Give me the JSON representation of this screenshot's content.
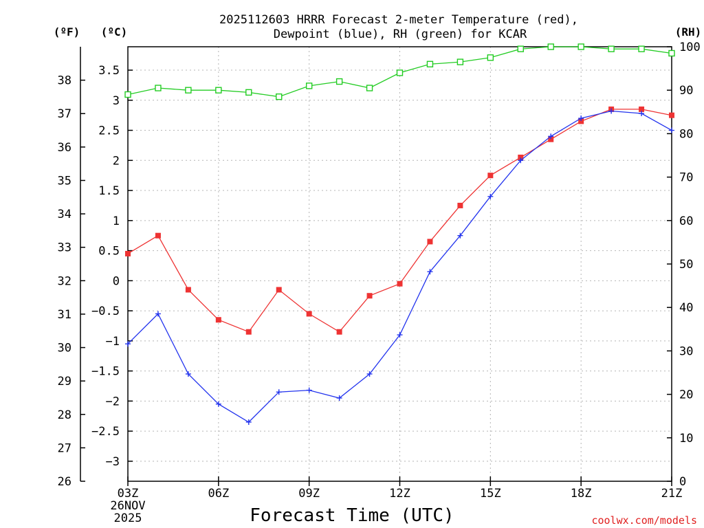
{
  "chart_data": {
    "type": "line",
    "title_lines": [
      "2025112603 HRRR Forecast 2-meter Temperature (red),",
      "Dewpoint (blue), RH (green) for KCAR"
    ],
    "xlabel": "Forecast Time (UTC)",
    "x_hours": [
      3,
      4,
      5,
      6,
      7,
      8,
      9,
      10,
      11,
      12,
      13,
      14,
      15,
      16,
      17,
      18,
      19,
      20,
      21
    ],
    "x_ticks": [
      {
        "hour": 3,
        "label": "03Z"
      },
      {
        "hour": 6,
        "label": "06Z"
      },
      {
        "hour": 9,
        "label": "09Z"
      },
      {
        "hour": 12,
        "label": "12Z"
      },
      {
        "hour": 15,
        "label": "15Z"
      },
      {
        "hour": 18,
        "label": "18Z"
      },
      {
        "hour": 21,
        "label": "21Z"
      }
    ],
    "date_label_lines": [
      "26NOV",
      "2025"
    ],
    "axes": {
      "fahrenheit": {
        "unit_label": "(ºF)",
        "range": [
          26,
          39
        ],
        "ticks": [
          26,
          27,
          28,
          29,
          30,
          31,
          32,
          33,
          34,
          35,
          36,
          37,
          38
        ]
      },
      "celsius": {
        "unit_label": "(ºC)",
        "range": [
          -3.333,
          3.889
        ],
        "ticks": [
          -3,
          -2.5,
          -2,
          -1.5,
          -1,
          -0.5,
          0,
          0.5,
          1,
          1.5,
          2,
          2.5,
          3,
          3.5
        ],
        "tick_labels": [
          "−3",
          "−2.5",
          "−2",
          "−1.5",
          "−1",
          "−0.5",
          "0",
          "0.5",
          "1",
          "1.5",
          "2",
          "2.5",
          "3",
          "3.5"
        ]
      },
      "rh": {
        "unit_label": "(RH)",
        "range": [
          0,
          100
        ],
        "ticks": [
          0,
          10,
          20,
          30,
          40,
          50,
          60,
          70,
          80,
          90,
          100
        ]
      }
    },
    "grid": true,
    "series": [
      {
        "name": "Temperature",
        "unit": "C",
        "axis": "celsius",
        "color": "#ee3333",
        "marker": "filled-square",
        "values": [
          0.45,
          0.75,
          -0.15,
          -0.65,
          -0.85,
          -0.15,
          -0.55,
          -0.85,
          -0.25,
          -0.05,
          0.65,
          1.25,
          1.75,
          2.05,
          2.35,
          2.65,
          2.85,
          2.85,
          2.75
        ]
      },
      {
        "name": "Dewpoint",
        "unit": "C",
        "axis": "celsius",
        "color": "#2233ee",
        "marker": "plus",
        "values": [
          -1.05,
          -0.55,
          -1.55,
          -2.05,
          -2.35,
          -1.85,
          -1.82,
          -1.95,
          -1.55,
          -0.9,
          0.15,
          0.75,
          1.4,
          2.0,
          2.4,
          2.7,
          2.82,
          2.78,
          2.5
        ]
      },
      {
        "name": "RH",
        "unit": "%",
        "axis": "rh",
        "color": "#22cc22",
        "marker": "open-square",
        "values": [
          89,
          90.5,
          90,
          90,
          89.5,
          88.5,
          91,
          92,
          90.5,
          94,
          96,
          96.5,
          97.5,
          99.5,
          100,
          100,
          99.5,
          99.5,
          98.5
        ]
      }
    ],
    "credit": "coolwx.com/models"
  }
}
